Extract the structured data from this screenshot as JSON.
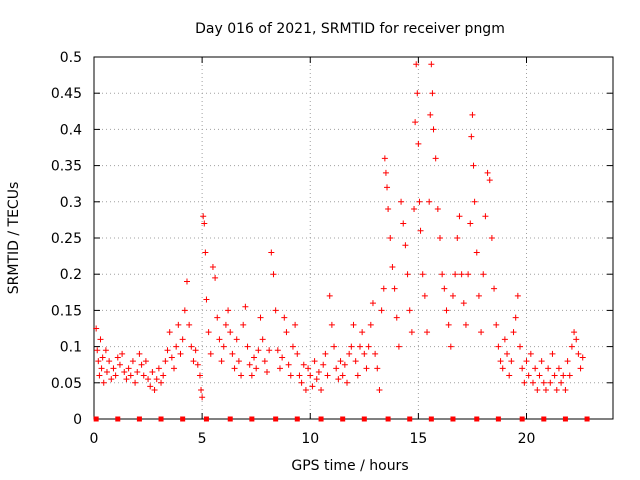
{
  "chart_data": {
    "type": "scatter",
    "title": "Day 016 of 2021, SRMTID for receiver pngm",
    "xlabel": "GPS time / hours",
    "ylabel": "SRMTID / TECUs",
    "xlim": [
      0,
      24
    ],
    "ylim": [
      0,
      0.5
    ],
    "x_ticks": [
      0,
      5,
      10,
      15,
      20
    ],
    "y_ticks": [
      0,
      0.05,
      0.1,
      0.15,
      0.2,
      0.25,
      0.3,
      0.35,
      0.4,
      0.45,
      0.5
    ],
    "y_tick_labels": [
      "0",
      "0.05",
      "0.1",
      "0.15",
      "0.2",
      "0.25",
      "0.3",
      "0.35",
      "0.4",
      "0.45",
      "0.5"
    ],
    "grid": true,
    "marker": "+",
    "color": "#ff0000",
    "series": [
      {
        "name": "SRMTID",
        "points": [
          [
            0.1,
            0.125
          ],
          [
            0.15,
            0.095
          ],
          [
            0.2,
            0.08
          ],
          [
            0.25,
            0.06
          ],
          [
            0.3,
            0.11
          ],
          [
            0.35,
            0.07
          ],
          [
            0.4,
            0.085
          ],
          [
            0.45,
            0.05
          ],
          [
            0.55,
            0.095
          ],
          [
            0.6,
            0.065
          ],
          [
            0.7,
            0.08
          ],
          [
            0.8,
            0.055
          ],
          [
            0.9,
            0.07
          ],
          [
            1.0,
            0.06
          ],
          [
            1.1,
            0.085
          ],
          [
            1.2,
            0.075
          ],
          [
            1.3,
            0.09
          ],
          [
            1.4,
            0.065
          ],
          [
            1.5,
            0.055
          ],
          [
            1.6,
            0.07
          ],
          [
            1.7,
            0.06
          ],
          [
            1.8,
            0.08
          ],
          [
            1.9,
            0.05
          ],
          [
            2.0,
            0.065
          ],
          [
            2.1,
            0.09
          ],
          [
            2.2,
            0.075
          ],
          [
            2.3,
            0.06
          ],
          [
            2.4,
            0.08
          ],
          [
            2.5,
            0.055
          ],
          [
            2.6,
            0.045
          ],
          [
            2.7,
            0.065
          ],
          [
            2.8,
            0.04
          ],
          [
            2.9,
            0.055
          ],
          [
            3.0,
            0.07
          ],
          [
            3.1,
            0.05
          ],
          [
            3.2,
            0.06
          ],
          [
            3.3,
            0.08
          ],
          [
            3.4,
            0.095
          ],
          [
            3.5,
            0.12
          ],
          [
            3.6,
            0.085
          ],
          [
            3.7,
            0.07
          ],
          [
            3.8,
            0.1
          ],
          [
            3.9,
            0.13
          ],
          [
            4.0,
            0.09
          ],
          [
            4.1,
            0.11
          ],
          [
            4.2,
            0.15
          ],
          [
            4.3,
            0.19
          ],
          [
            4.4,
            0.13
          ],
          [
            4.5,
            0.1
          ],
          [
            4.6,
            0.08
          ],
          [
            4.7,
            0.095
          ],
          [
            4.8,
            0.075
          ],
          [
            4.9,
            0.06
          ],
          [
            4.95,
            0.04
          ],
          [
            5.0,
            0.03
          ],
          [
            5.05,
            0.28
          ],
          [
            5.1,
            0.27
          ],
          [
            5.15,
            0.23
          ],
          [
            5.2,
            0.165
          ],
          [
            5.3,
            0.12
          ],
          [
            5.4,
            0.09
          ],
          [
            5.5,
            0.21
          ],
          [
            5.6,
            0.195
          ],
          [
            5.7,
            0.14
          ],
          [
            5.8,
            0.11
          ],
          [
            5.9,
            0.08
          ],
          [
            6.0,
            0.1
          ],
          [
            6.1,
            0.13
          ],
          [
            6.2,
            0.15
          ],
          [
            6.3,
            0.12
          ],
          [
            6.4,
            0.09
          ],
          [
            6.5,
            0.07
          ],
          [
            6.6,
            0.11
          ],
          [
            6.7,
            0.08
          ],
          [
            6.8,
            0.06
          ],
          [
            6.9,
            0.13
          ],
          [
            7.0,
            0.155
          ],
          [
            7.1,
            0.1
          ],
          [
            7.2,
            0.075
          ],
          [
            7.3,
            0.06
          ],
          [
            7.4,
            0.085
          ],
          [
            7.5,
            0.07
          ],
          [
            7.6,
            0.095
          ],
          [
            7.7,
            0.14
          ],
          [
            7.8,
            0.11
          ],
          [
            7.9,
            0.08
          ],
          [
            8.0,
            0.065
          ],
          [
            8.1,
            0.095
          ],
          [
            8.2,
            0.23
          ],
          [
            8.3,
            0.2
          ],
          [
            8.4,
            0.15
          ],
          [
            8.5,
            0.095
          ],
          [
            8.6,
            0.07
          ],
          [
            8.7,
            0.085
          ],
          [
            8.8,
            0.14
          ],
          [
            8.9,
            0.12
          ],
          [
            9.0,
            0.075
          ],
          [
            9.1,
            0.06
          ],
          [
            9.2,
            0.1
          ],
          [
            9.3,
            0.13
          ],
          [
            9.4,
            0.09
          ],
          [
            9.5,
            0.06
          ],
          [
            9.6,
            0.05
          ],
          [
            9.7,
            0.075
          ],
          [
            9.8,
            0.04
          ],
          [
            9.9,
            0.07
          ],
          [
            10.0,
            0.06
          ],
          [
            10.1,
            0.045
          ],
          [
            10.2,
            0.08
          ],
          [
            10.3,
            0.055
          ],
          [
            10.4,
            0.065
          ],
          [
            10.5,
            0.04
          ],
          [
            10.6,
            0.075
          ],
          [
            10.7,
            0.09
          ],
          [
            10.8,
            0.06
          ],
          [
            10.9,
            0.17
          ],
          [
            11.0,
            0.13
          ],
          [
            11.1,
            0.1
          ],
          [
            11.2,
            0.07
          ],
          [
            11.3,
            0.055
          ],
          [
            11.4,
            0.08
          ],
          [
            11.5,
            0.06
          ],
          [
            11.6,
            0.075
          ],
          [
            11.7,
            0.05
          ],
          [
            11.8,
            0.09
          ],
          [
            11.9,
            0.1
          ],
          [
            12.0,
            0.13
          ],
          [
            12.1,
            0.08
          ],
          [
            12.2,
            0.06
          ],
          [
            12.3,
            0.1
          ],
          [
            12.4,
            0.12
          ],
          [
            12.5,
            0.09
          ],
          [
            12.6,
            0.07
          ],
          [
            12.7,
            0.1
          ],
          [
            12.8,
            0.13
          ],
          [
            12.9,
            0.16
          ],
          [
            13.0,
            0.09
          ],
          [
            13.1,
            0.07
          ],
          [
            13.2,
            0.04
          ],
          [
            13.3,
            0.15
          ],
          [
            13.4,
            0.18
          ],
          [
            13.45,
            0.36
          ],
          [
            13.5,
            0.34
          ],
          [
            13.55,
            0.32
          ],
          [
            13.6,
            0.29
          ],
          [
            13.7,
            0.25
          ],
          [
            13.8,
            0.21
          ],
          [
            13.9,
            0.18
          ],
          [
            14.0,
            0.14
          ],
          [
            14.1,
            0.1
          ],
          [
            14.2,
            0.3
          ],
          [
            14.3,
            0.27
          ],
          [
            14.4,
            0.24
          ],
          [
            14.5,
            0.2
          ],
          [
            14.6,
            0.15
          ],
          [
            14.7,
            0.12
          ],
          [
            14.8,
            0.29
          ],
          [
            14.85,
            0.41
          ],
          [
            14.9,
            0.49
          ],
          [
            14.95,
            0.45
          ],
          [
            15.0,
            0.38
          ],
          [
            15.05,
            0.3
          ],
          [
            15.1,
            0.26
          ],
          [
            15.2,
            0.2
          ],
          [
            15.3,
            0.17
          ],
          [
            15.4,
            0.12
          ],
          [
            15.5,
            0.3
          ],
          [
            15.55,
            0.42
          ],
          [
            15.6,
            0.49
          ],
          [
            15.65,
            0.45
          ],
          [
            15.7,
            0.4
          ],
          [
            15.8,
            0.36
          ],
          [
            15.9,
            0.29
          ],
          [
            16.0,
            0.25
          ],
          [
            16.1,
            0.2
          ],
          [
            16.2,
            0.18
          ],
          [
            16.3,
            0.15
          ],
          [
            16.4,
            0.13
          ],
          [
            16.5,
            0.1
          ],
          [
            16.6,
            0.17
          ],
          [
            16.7,
            0.2
          ],
          [
            16.8,
            0.25
          ],
          [
            16.9,
            0.28
          ],
          [
            17.0,
            0.2
          ],
          [
            17.1,
            0.16
          ],
          [
            17.2,
            0.13
          ],
          [
            17.3,
            0.2
          ],
          [
            17.4,
            0.27
          ],
          [
            17.45,
            0.39
          ],
          [
            17.5,
            0.42
          ],
          [
            17.55,
            0.35
          ],
          [
            17.6,
            0.3
          ],
          [
            17.7,
            0.23
          ],
          [
            17.8,
            0.17
          ],
          [
            17.9,
            0.12
          ],
          [
            18.0,
            0.2
          ],
          [
            18.1,
            0.28
          ],
          [
            18.2,
            0.34
          ],
          [
            18.3,
            0.33
          ],
          [
            18.4,
            0.25
          ],
          [
            18.5,
            0.18
          ],
          [
            18.6,
            0.13
          ],
          [
            18.7,
            0.1
          ],
          [
            18.8,
            0.08
          ],
          [
            18.9,
            0.07
          ],
          [
            19.0,
            0.11
          ],
          [
            19.1,
            0.09
          ],
          [
            19.2,
            0.06
          ],
          [
            19.3,
            0.08
          ],
          [
            19.4,
            0.12
          ],
          [
            19.5,
            0.14
          ],
          [
            19.6,
            0.17
          ],
          [
            19.7,
            0.1
          ],
          [
            19.8,
            0.07
          ],
          [
            19.9,
            0.05
          ],
          [
            20.0,
            0.08
          ],
          [
            20.1,
            0.06
          ],
          [
            20.2,
            0.09
          ],
          [
            20.3,
            0.05
          ],
          [
            20.4,
            0.07
          ],
          [
            20.5,
            0.04
          ],
          [
            20.6,
            0.06
          ],
          [
            20.7,
            0.08
          ],
          [
            20.8,
            0.05
          ],
          [
            20.9,
            0.04
          ],
          [
            21.0,
            0.07
          ],
          [
            21.1,
            0.05
          ],
          [
            21.2,
            0.09
          ],
          [
            21.3,
            0.06
          ],
          [
            21.4,
            0.04
          ],
          [
            21.5,
            0.07
          ],
          [
            21.6,
            0.05
          ],
          [
            21.7,
            0.06
          ],
          [
            21.8,
            0.04
          ],
          [
            21.9,
            0.08
          ],
          [
            22.0,
            0.06
          ],
          [
            22.1,
            0.1
          ],
          [
            22.2,
            0.12
          ],
          [
            22.3,
            0.11
          ],
          [
            22.4,
            0.09
          ],
          [
            22.5,
            0.07
          ],
          [
            22.6,
            0.085
          ]
        ]
      }
    ],
    "baseline_markers_x": [
      0.1,
      1.1,
      2.1,
      3.1,
      4.1,
      5.2,
      6.3,
      7.3,
      8.4,
      9.4,
      10.5,
      11.5,
      12.5,
      13.6,
      14.6,
      15.6,
      16.6,
      17.7,
      18.7,
      19.8,
      20.8,
      21.8,
      22.8
    ]
  }
}
